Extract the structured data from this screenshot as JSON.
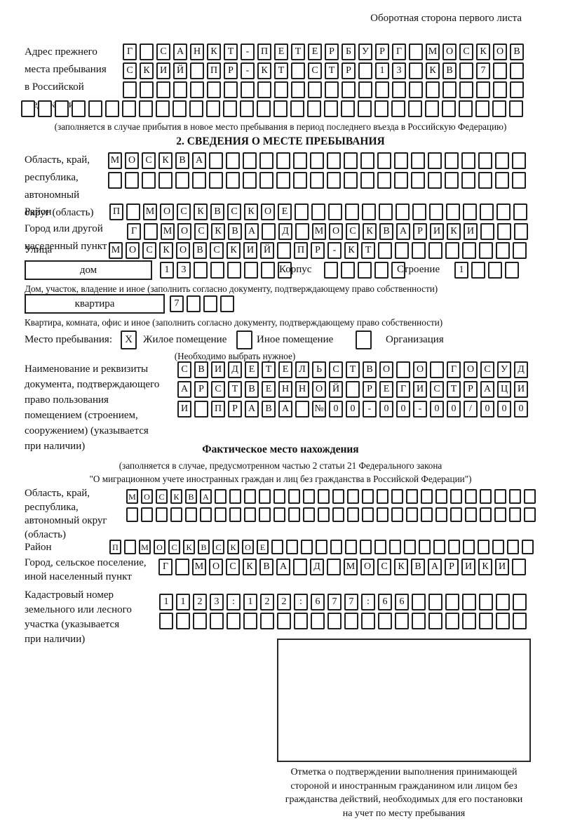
{
  "header": {
    "back_side_note": "Оборотная сторона первого листа"
  },
  "prev_address": {
    "label": "Адрес прежнего\nместа пребывания\nв Российской\nФедерации",
    "rows": {
      "r1": {
        "cells": "Г САНКТ-ПЕТЕРБУРГ МОСКОВ",
        "count": 24
      },
      "r2": {
        "cells": "СКИЙ ПР-КТ СТР 13 КВ 7",
        "count": 24
      },
      "r3": {
        "cells": "",
        "count": 24
      },
      "r4": {
        "cells": "",
        "count": 30
      }
    },
    "footnote": "(заполняется в случае прибытия в новое место пребывания в период последнего въезда в Российскую Федерацию)"
  },
  "section2": {
    "title": "2. СВЕДЕНИЯ О МЕСТЕ ПРЕБЫВАНИЯ",
    "region": {
      "label": "Область, край,\nреспублика,\nавтономный\nокруг (область)",
      "rows": {
        "r1": {
          "cells": "МОСКВА",
          "count": 25
        },
        "r2": {
          "cells": "",
          "count": 25
        }
      }
    },
    "district": {
      "label": "Район",
      "row": {
        "cells": "П МОСКВСКОЕ",
        "count": 25
      }
    },
    "city": {
      "label": "Город или другой\nнаселенный пункт",
      "row": {
        "cells": "Г МОСКВА Д МОСКВАРИКИ",
        "count": 24
      }
    },
    "street": {
      "label": "Улица",
      "row": {
        "cells": "МОСКОВСКИЙ ПР-КТ",
        "count": 25
      }
    },
    "house": {
      "label": "дом",
      "row": {
        "cells": "13",
        "count": 8
      },
      "korpus_label": "Корпус",
      "korpus_row": {
        "cells": "",
        "count": 5
      },
      "stroenie_label": "Строение",
      "stroenie_row": {
        "cells": "1",
        "count": 4
      },
      "footnote": "Дом, участок, владение и иное (заполнить согласно документу, подтверждающему право собственности)"
    },
    "flat": {
      "label": "квартира",
      "row": {
        "cells": "7",
        "count": 4
      },
      "footnote": "Квартира, комната, офис и иное (заполнить согласно документу, подтверждающему право собственности)"
    },
    "stay_type": {
      "label": "Место пребывания:",
      "options": [
        {
          "label": "Жилое помещение",
          "mark": "X"
        },
        {
          "label": "Иное помещение",
          "mark": ""
        },
        {
          "label": "Организация",
          "mark": ""
        }
      ],
      "note": "(Необходимо выбрать нужное)"
    },
    "document": {
      "label": "Наименование и реквизиты\nдокумента, подтверждающего\nправо пользования\nпомещением (строением,\nсооружением) (указывается\nпри наличии)",
      "rows": {
        "r1": {
          "cells": "СВИДЕТЕЛЬСТВО О ГОСУД",
          "count": 21
        },
        "r2": {
          "cells": "АРСТВЕННОЙ РЕГИСТРАЦИ",
          "count": 21
        },
        "r3": {
          "cells": "И ПРАВА №00-00-00/000",
          "count": 21
        }
      }
    }
  },
  "actual_location": {
    "title": "Фактическое место нахождения",
    "note_line1": "(заполняется в случае, предусмотренном частью 2 статьи 21 Федерального закона",
    "note_line2": "\"О миграционном учете иностранных граждан и лиц без гражданства в Российской Федерации\")",
    "region": {
      "label": "Область, край,\nреспублика,\nавтономный округ\n(область)",
      "rows": {
        "r1": {
          "cells": "МОСКВА",
          "count": 28
        },
        "r2": {
          "cells": "",
          "count": 28
        }
      }
    },
    "district": {
      "label": "Район",
      "row": {
        "cells": "П МОСКВСКОЕ",
        "count": 29
      }
    },
    "city": {
      "label": "Город, сельское поселение,\nиной населенный пункт",
      "row": {
        "cells": "Г МОСКВА Д МОСКВАРИКИ",
        "count": 22
      }
    },
    "cadastre": {
      "label": "Кадастровый номер\nземельного или лесного\nучастка (указывается\nпри наличии)",
      "rows": {
        "r1": {
          "cells": "1123:122:677:66",
          "count": 22
        },
        "r2": {
          "cells": "",
          "count": 22
        }
      }
    }
  },
  "stamp": {
    "caption": "Отметка о подтверждении выполнения принимающей\nстороной и иностранным гражданином или лицом без\nгражданства действий, необходимых для его постановки\nна учет по месту пребывания"
  }
}
